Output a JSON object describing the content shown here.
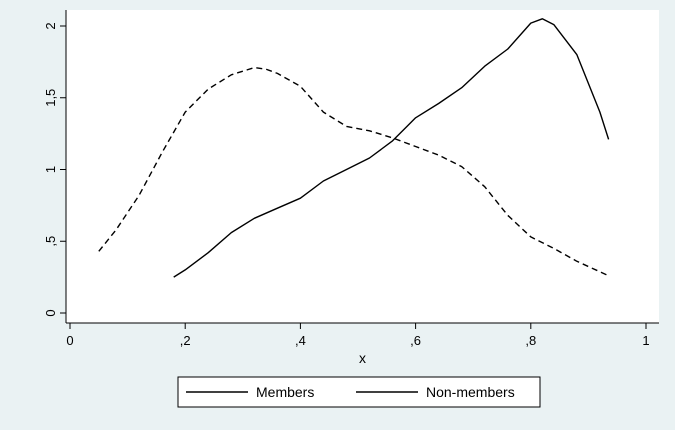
{
  "chart_data": {
    "type": "line",
    "title": "",
    "xlabel": "x",
    "ylabel": "",
    "xlim": [
      0,
      1
    ],
    "ylim": [
      0,
      2
    ],
    "x_ticks": [
      {
        "value": 0,
        "label": "0"
      },
      {
        "value": 0.2,
        "label": ",2"
      },
      {
        "value": 0.4,
        "label": ",4"
      },
      {
        "value": 0.6,
        "label": ",6"
      },
      {
        "value": 0.8,
        "label": ",8"
      },
      {
        "value": 1,
        "label": "1"
      }
    ],
    "y_ticks": [
      {
        "value": 0,
        "label": "0"
      },
      {
        "value": 0.5,
        "label": ",5"
      },
      {
        "value": 1,
        "label": "1"
      },
      {
        "value": 1.5,
        "label": "1,5"
      },
      {
        "value": 2,
        "label": "2"
      }
    ],
    "grid": false,
    "legend_position": "bottom",
    "series": [
      {
        "name": "Members",
        "style": "solid",
        "color": "#000000",
        "x": [
          0.18,
          0.2,
          0.24,
          0.28,
          0.32,
          0.36,
          0.4,
          0.44,
          0.48,
          0.52,
          0.56,
          0.6,
          0.64,
          0.68,
          0.72,
          0.76,
          0.8,
          0.82,
          0.84,
          0.88,
          0.92,
          0.935
        ],
        "y": [
          0.25,
          0.3,
          0.42,
          0.56,
          0.66,
          0.73,
          0.8,
          0.92,
          1.0,
          1.08,
          1.2,
          1.36,
          1.46,
          1.57,
          1.72,
          1.84,
          2.02,
          2.05,
          2.01,
          1.8,
          1.4,
          1.21
        ]
      },
      {
        "name": "Non-members",
        "style": "dashed",
        "color": "#000000",
        "x": [
          0.05,
          0.08,
          0.12,
          0.16,
          0.2,
          0.24,
          0.28,
          0.32,
          0.34,
          0.36,
          0.4,
          0.44,
          0.48,
          0.52,
          0.56,
          0.6,
          0.64,
          0.68,
          0.72,
          0.76,
          0.8,
          0.84,
          0.88,
          0.935
        ],
        "y": [
          0.43,
          0.58,
          0.82,
          1.12,
          1.4,
          1.56,
          1.66,
          1.71,
          1.7,
          1.67,
          1.58,
          1.4,
          1.3,
          1.27,
          1.22,
          1.16,
          1.1,
          1.02,
          0.88,
          0.68,
          0.53,
          0.45,
          0.36,
          0.26
        ]
      }
    ]
  }
}
